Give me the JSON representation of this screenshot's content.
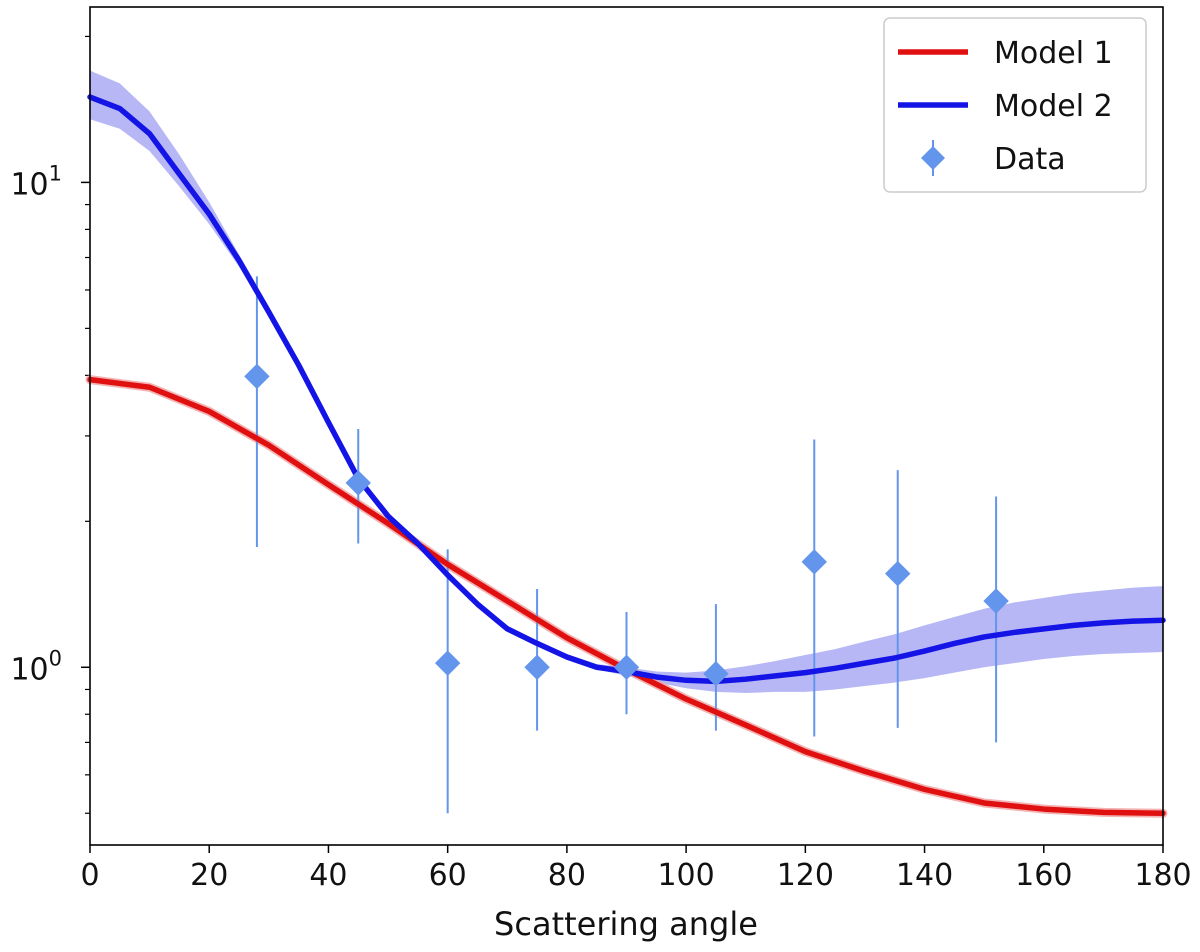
{
  "chart_data": {
    "type": "line",
    "title": "",
    "xlabel": "Scattering angle",
    "ylabel": "",
    "xlim": [
      0,
      180
    ],
    "ylim": [
      0.43,
      23
    ],
    "yscale": "log",
    "x_ticks": [
      0,
      20,
      40,
      60,
      80,
      100,
      120,
      140,
      160,
      180
    ],
    "x_tick_labels": [
      "0",
      "20",
      "40",
      "60",
      "80",
      "100",
      "120",
      "140",
      "160",
      "180"
    ],
    "y_major_ticks": [
      {
        "value": 1,
        "base": "10",
        "exp": "0"
      },
      {
        "value": 10,
        "base": "10",
        "exp": "1"
      }
    ],
    "y_minor_ticks": [
      0.5,
      0.6,
      0.7,
      0.8,
      0.9,
      2,
      3,
      4,
      5,
      6,
      7,
      8,
      9,
      20
    ],
    "legend_position": "top-right",
    "series": [
      {
        "name": "Model 1",
        "kind": "line",
        "color": "#e01010",
        "band_color": "#f0a0a0",
        "points": [
          [
            0,
            3.92
          ],
          [
            10,
            3.78
          ],
          [
            20,
            3.37
          ],
          [
            30,
            2.87
          ],
          [
            40,
            2.38
          ],
          [
            50,
            1.98
          ],
          [
            60,
            1.63
          ],
          [
            70,
            1.37
          ],
          [
            80,
            1.15
          ],
          [
            90,
            0.99
          ],
          [
            100,
            0.86
          ],
          [
            110,
            0.76
          ],
          [
            120,
            0.67
          ],
          [
            130,
            0.61
          ],
          [
            140,
            0.56
          ],
          [
            150,
            0.525
          ],
          [
            160,
            0.51
          ],
          [
            170,
            0.502
          ],
          [
            180,
            0.5
          ]
        ],
        "band": [
          [
            0,
            3.85,
            3.99
          ],
          [
            180,
            0.49,
            0.51
          ]
        ]
      },
      {
        "name": "Model 2",
        "kind": "line",
        "color": "#1414e6",
        "band_color": "#b3b3f5",
        "points": [
          [
            0,
            15.0
          ],
          [
            5,
            14.2
          ],
          [
            10,
            12.6
          ],
          [
            15,
            10.4
          ],
          [
            20,
            8.6
          ],
          [
            25,
            6.9
          ],
          [
            30,
            5.4
          ],
          [
            35,
            4.2
          ],
          [
            40,
            3.2
          ],
          [
            45,
            2.45
          ],
          [
            50,
            2.05
          ],
          [
            55,
            1.8
          ],
          [
            60,
            1.55
          ],
          [
            65,
            1.35
          ],
          [
            70,
            1.2
          ],
          [
            75,
            1.12
          ],
          [
            80,
            1.05
          ],
          [
            85,
            1.0
          ],
          [
            90,
            0.98
          ],
          [
            95,
            0.955
          ],
          [
            100,
            0.94
          ],
          [
            105,
            0.935
          ],
          [
            110,
            0.945
          ],
          [
            115,
            0.96
          ],
          [
            120,
            0.975
          ],
          [
            125,
            0.995
          ],
          [
            130,
            1.02
          ],
          [
            135,
            1.045
          ],
          [
            140,
            1.08
          ],
          [
            145,
            1.12
          ],
          [
            150,
            1.155
          ],
          [
            155,
            1.18
          ],
          [
            160,
            1.2
          ],
          [
            165,
            1.22
          ],
          [
            170,
            1.235
          ],
          [
            175,
            1.245
          ],
          [
            180,
            1.25
          ]
        ],
        "band_lower": [
          [
            0,
            13.5
          ],
          [
            5,
            12.9
          ],
          [
            10,
            11.6
          ],
          [
            15,
            9.8
          ],
          [
            20,
            8.2
          ],
          [
            25,
            6.7
          ],
          [
            30,
            5.3
          ],
          [
            35,
            4.15
          ],
          [
            40,
            3.15
          ],
          [
            45,
            2.43
          ],
          [
            50,
            2.03
          ],
          [
            55,
            1.78
          ],
          [
            60,
            1.53
          ],
          [
            65,
            1.33
          ],
          [
            70,
            1.19
          ],
          [
            75,
            1.11
          ],
          [
            80,
            1.04
          ],
          [
            85,
            0.99
          ],
          [
            90,
            0.96
          ],
          [
            95,
            0.93
          ],
          [
            100,
            0.905
          ],
          [
            105,
            0.89
          ],
          [
            110,
            0.885
          ],
          [
            115,
            0.89
          ],
          [
            120,
            0.89
          ],
          [
            125,
            0.9
          ],
          [
            130,
            0.915
          ],
          [
            135,
            0.93
          ],
          [
            140,
            0.95
          ],
          [
            145,
            0.975
          ],
          [
            150,
            1.0
          ],
          [
            155,
            1.02
          ],
          [
            160,
            1.04
          ],
          [
            165,
            1.055
          ],
          [
            170,
            1.065
          ],
          [
            175,
            1.07
          ],
          [
            180,
            1.075
          ]
        ],
        "band_upper": [
          [
            0,
            17.0
          ],
          [
            5,
            16.0
          ],
          [
            10,
            14.0
          ],
          [
            15,
            11.4
          ],
          [
            20,
            9.1
          ],
          [
            25,
            7.1
          ],
          [
            30,
            5.55
          ],
          [
            35,
            4.25
          ],
          [
            40,
            3.25
          ],
          [
            45,
            2.48
          ],
          [
            50,
            2.07
          ],
          [
            55,
            1.82
          ],
          [
            60,
            1.57
          ],
          [
            65,
            1.37
          ],
          [
            70,
            1.22
          ],
          [
            75,
            1.135
          ],
          [
            80,
            1.065
          ],
          [
            85,
            1.015
          ],
          [
            90,
            1.0
          ],
          [
            95,
            0.98
          ],
          [
            100,
            0.975
          ],
          [
            105,
            0.985
          ],
          [
            110,
            1.005
          ],
          [
            115,
            1.03
          ],
          [
            120,
            1.06
          ],
          [
            125,
            1.09
          ],
          [
            130,
            1.13
          ],
          [
            135,
            1.17
          ],
          [
            140,
            1.22
          ],
          [
            145,
            1.27
          ],
          [
            150,
            1.32
          ],
          [
            155,
            1.36
          ],
          [
            160,
            1.39
          ],
          [
            165,
            1.42
          ],
          [
            170,
            1.44
          ],
          [
            175,
            1.46
          ],
          [
            180,
            1.47
          ]
        ]
      },
      {
        "name": "Data",
        "kind": "errorbar",
        "color": "#6495ed",
        "points": [
          {
            "x": 28,
            "y": 3.98,
            "ylo": 1.77,
            "yhi": 6.4
          },
          {
            "x": 45,
            "y": 2.4,
            "ylo": 1.8,
            "yhi": 3.1
          },
          {
            "x": 60,
            "y": 1.02,
            "ylo": 0.5,
            "yhi": 1.75
          },
          {
            "x": 75,
            "y": 1.0,
            "ylo": 0.74,
            "yhi": 1.45
          },
          {
            "x": 90,
            "y": 1.0,
            "ylo": 0.8,
            "yhi": 1.3
          },
          {
            "x": 105,
            "y": 0.97,
            "ylo": 0.74,
            "yhi": 1.35
          },
          {
            "x": 121.5,
            "y": 1.65,
            "ylo": 0.72,
            "yhi": 2.95
          },
          {
            "x": 135.5,
            "y": 1.56,
            "ylo": 0.75,
            "yhi": 2.55
          },
          {
            "x": 152,
            "y": 1.37,
            "ylo": 0.7,
            "yhi": 2.25
          }
        ]
      }
    ]
  }
}
